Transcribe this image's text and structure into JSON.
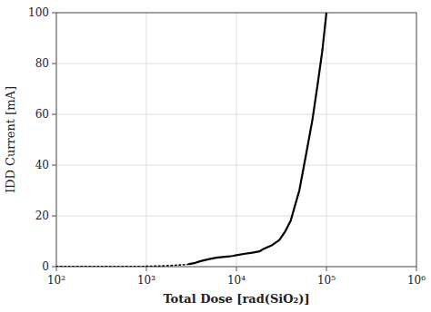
{
  "chart_data": {
    "type": "line",
    "x_label": "Total Dose [rad(SiO₂)]",
    "y_label": "IDD Current [mA]",
    "log": "x",
    "grid": true,
    "xlim": [
      100,
      1000000
    ],
    "ylim": [
      0,
      100
    ],
    "xticks": [
      {
        "value": 100,
        "label": "10²"
      },
      {
        "value": 1000,
        "label": "10³"
      },
      {
        "value": 10000,
        "label": "10⁴"
      },
      {
        "value": 100000,
        "label": "10⁵"
      },
      {
        "value": 1000000,
        "label": "10⁶"
      }
    ],
    "yticks": [
      0,
      20,
      40,
      60,
      80,
      100
    ],
    "x": [
      100,
      200,
      300,
      400,
      500,
      600,
      700,
      800,
      900,
      1000,
      1200,
      1500,
      2000,
      2500,
      3000,
      3500,
      4000,
      5000,
      6000,
      7000,
      8000,
      9000,
      10000,
      12000,
      15000,
      18000,
      20000,
      25000,
      30000,
      35000,
      40000,
      50000,
      60000,
      70000,
      80000,
      90000,
      100000
    ],
    "series": [
      {
        "color": "#000000",
        "line_style": "dotted",
        "values": [
          0.1,
          0.1,
          0.1,
          0.1,
          0.1,
          0.1,
          0.1,
          0.1,
          0.1,
          0.2,
          0.2,
          0.3,
          0.5,
          0.7,
          1.0,
          null,
          null,
          null,
          null,
          null,
          null,
          null,
          null,
          null,
          null,
          null,
          null,
          null,
          null,
          null,
          null,
          null,
          null,
          null,
          null,
          null,
          null
        ]
      },
      {
        "color": "#000000",
        "line_style": "solid",
        "values": [
          null,
          null,
          null,
          null,
          null,
          null,
          null,
          null,
          null,
          null,
          null,
          null,
          null,
          null,
          1.0,
          1.5,
          2.2,
          3.0,
          3.5,
          3.8,
          4.0,
          4.2,
          4.5,
          5.0,
          5.5,
          6.0,
          7.0,
          8.5,
          10.5,
          14.0,
          18.0,
          30.0,
          45.0,
          58.0,
          72.0,
          85.0,
          100.0
        ]
      }
    ]
  }
}
